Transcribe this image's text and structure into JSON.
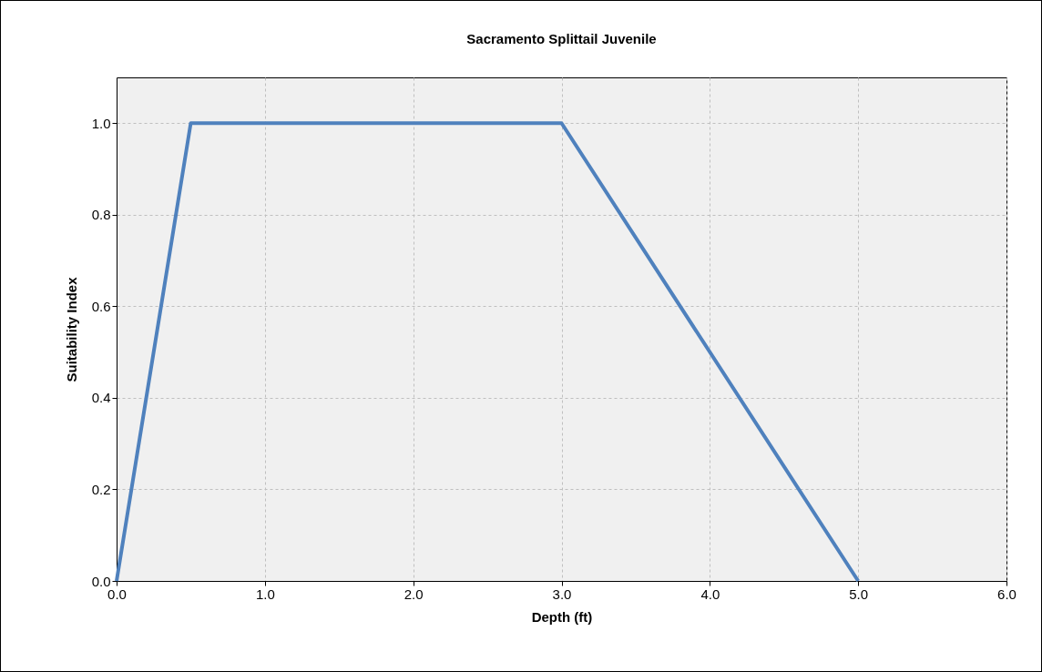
{
  "chart_data": {
    "type": "line",
    "title": "Sacramento Splittail Juvenile",
    "xlabel": "Depth (ft)",
    "ylabel": "Suitability Index",
    "x": [
      0,
      0.5,
      3,
      5
    ],
    "series": [
      {
        "color": "#4f81bd",
        "values": [
          0,
          1,
          1,
          0
        ]
      }
    ],
    "xlim": [
      0,
      6
    ],
    "ylim": [
      0,
      1.1
    ],
    "xticks": [
      {
        "value": 0,
        "label": "0.0"
      },
      {
        "value": 1,
        "label": "1.0"
      },
      {
        "value": 2,
        "label": "2.0"
      },
      {
        "value": 3,
        "label": "3.0"
      },
      {
        "value": 4,
        "label": "4.0"
      },
      {
        "value": 5,
        "label": "5.0"
      },
      {
        "value": 6,
        "label": "6.0"
      }
    ],
    "yticks": [
      {
        "value": 0,
        "label": "0.0"
      },
      {
        "value": 0.2,
        "label": "0.2"
      },
      {
        "value": 0.4,
        "label": "0.4"
      },
      {
        "value": 0.6,
        "label": "0.6"
      },
      {
        "value": 0.8,
        "label": "0.8"
      },
      {
        "value": 1,
        "label": "1.0"
      }
    ],
    "grid": true,
    "legend": false,
    "line_style": "solid"
  }
}
